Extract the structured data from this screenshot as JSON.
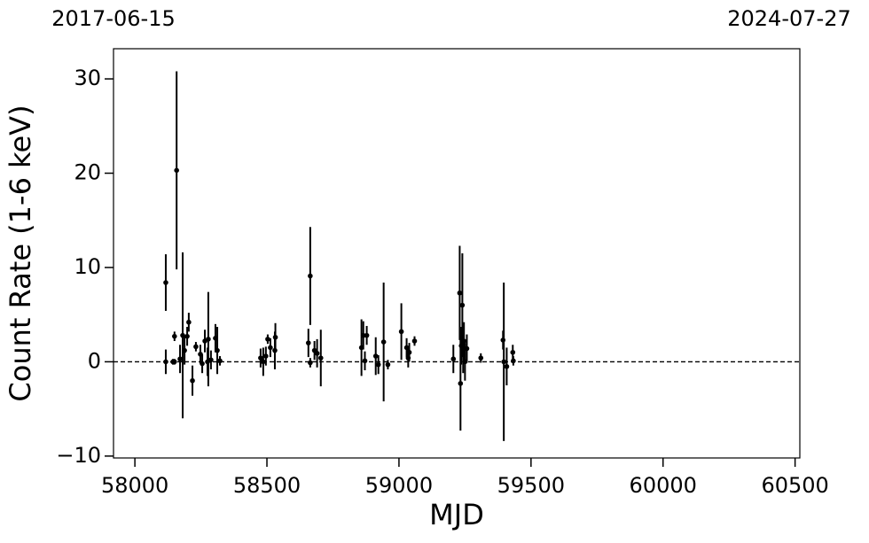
{
  "chart_data": {
    "type": "errorbar",
    "xlabel": "MJD",
    "ylabel": "Count Rate (1-6 keV)",
    "xlim": [
      57919,
      60518
    ],
    "ylim": [
      -10.2,
      33.2
    ],
    "xticks": [
      58000,
      58500,
      59000,
      59500,
      60000,
      60500
    ],
    "yticks": [
      {
        "value": -10,
        "label": "−10"
      },
      0,
      10,
      20,
      30
    ],
    "x2ticks": [
      {
        "value": 57919,
        "label": "2017-06-15"
      },
      {
        "value": 60518,
        "label": "2024-07-27"
      }
    ],
    "hline": 0,
    "color": "#000000",
    "x": [
      58117,
      58117,
      58144,
      58150,
      58158,
      58150,
      58171,
      58181,
      58188,
      58198,
      58204,
      58218,
      58231,
      58248,
      58255,
      58265,
      58275,
      58278,
      58288,
      58305,
      58312,
      58322,
      58476,
      58486,
      58496,
      58503,
      58513,
      58530,
      58532,
      58657,
      58664,
      58664,
      58680,
      58690,
      58704,
      58858,
      58865,
      58871,
      58878,
      58912,
      58922,
      58942,
      58958,
      59009,
      59029,
      59035,
      59039,
      59059,
      59206,
      59230,
      59233,
      59236,
      59240,
      59243,
      59246,
      59250,
      59257,
      59310,
      59394,
      59397,
      59408,
      59431,
      59433
    ],
    "values": [
      8.4,
      0,
      0,
      0,
      20.3,
      2.7,
      0.3,
      2.8,
      1.2,
      2.7,
      4.2,
      -2,
      1.6,
      0.8,
      -0.2,
      2.2,
      0,
      2.4,
      0.2,
      2.5,
      1.2,
      0.1,
      0.4,
      0,
      0.6,
      2.4,
      1.5,
      1.2,
      2.6,
      2,
      9.1,
      -0.1,
      1.2,
      0.9,
      0.4,
      1.5,
      2.8,
      0.1,
      2.8,
      0.6,
      -0.3,
      2.1,
      -0.3,
      3.2,
      1.5,
      0.4,
      1,
      2.2,
      0.3,
      7.3,
      -2.3,
      1.7,
      6,
      0.8,
      2.2,
      0,
      1.4,
      0.4,
      2.3,
      0,
      -0.5,
      1,
      0.1
    ],
    "errors": [
      3,
      1.3,
      0.3,
      0.3,
      10.5,
      0.5,
      1.5,
      8.8,
      1.5,
      1,
      1,
      1.6,
      0.5,
      1,
      1,
      1.2,
      1.5,
      5,
      1,
      1.5,
      2.5,
      0.5,
      1,
      1.5,
      1,
      0.5,
      1,
      2,
      1.5,
      1.5,
      5.2,
      0.5,
      1,
      1.5,
      3,
      3,
      1.5,
      1,
      1,
      2,
      1,
      6.3,
      0.5,
      3,
      1,
      1,
      1,
      0.5,
      1.5,
      5,
      5,
      2,
      5.5,
      2,
      2,
      2,
      1.5,
      0.5,
      1,
      8.4,
      2,
      0.8,
      0.5
    ]
  }
}
